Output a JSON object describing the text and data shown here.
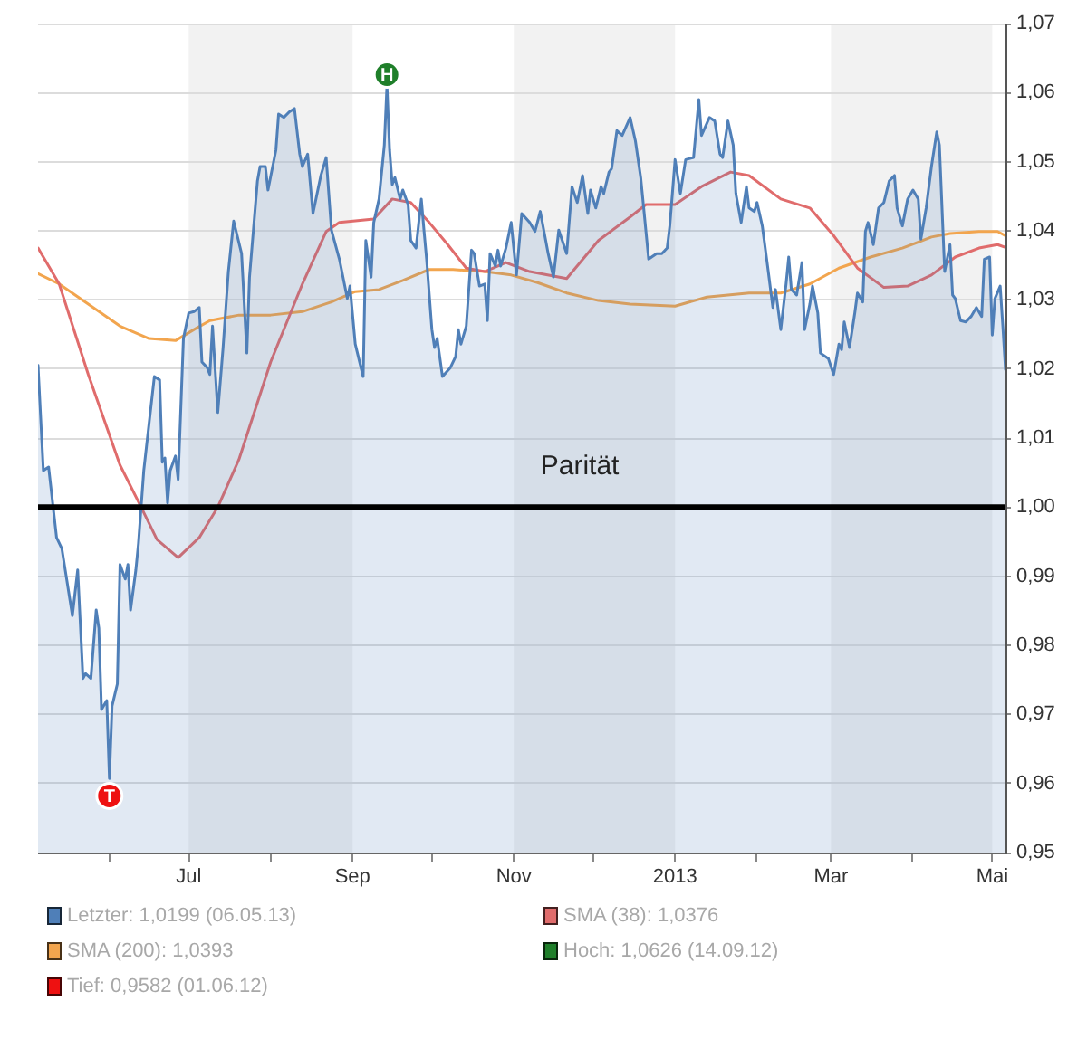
{
  "chart_data": {
    "type": "line",
    "xlim": [
      "2012-05-05",
      "2013-05-06"
    ],
    "xticks": [
      {
        "value": "2012-06-01",
        "label": null
      },
      {
        "value": "2012-07-01",
        "label": "Jul"
      },
      {
        "value": "2012-08-01",
        "label": null
      },
      {
        "value": "2012-09-01",
        "label": "Sep"
      },
      {
        "value": "2012-10-01",
        "label": null
      },
      {
        "value": "2012-11-01",
        "label": "Nov"
      },
      {
        "value": "2012-12-01",
        "label": null
      },
      {
        "value": "2013-01-01",
        "label": "2013"
      },
      {
        "value": "2013-02-01",
        "label": null
      },
      {
        "value": "2013-03-01",
        "label": "Mar"
      },
      {
        "value": "2013-04-01",
        "label": null
      },
      {
        "value": "2013-05-01",
        "label": "Mai"
      }
    ],
    "ylim": [
      0.95,
      1.07
    ],
    "yticks": [
      {
        "value": 0.95,
        "label": "0,95"
      },
      {
        "value": 0.96,
        "label": "0,96"
      },
      {
        "value": 0.97,
        "label": "0,97"
      },
      {
        "value": 0.98,
        "label": "0,98"
      },
      {
        "value": 0.99,
        "label": "0,99"
      },
      {
        "value": 1.0,
        "label": "1,00"
      },
      {
        "value": 1.01,
        "label": "1,01"
      },
      {
        "value": 1.02,
        "label": "1,02"
      },
      {
        "value": 1.03,
        "label": "1,03"
      },
      {
        "value": 1.04,
        "label": "1,04"
      },
      {
        "value": 1.05,
        "label": "1,05"
      },
      {
        "value": 1.06,
        "label": "1,06"
      },
      {
        "value": 1.07,
        "label": "1,07"
      }
    ],
    "grid": "y",
    "legend": "bottom",
    "bands": [
      {
        "axis": "x",
        "from": "2012-07-01",
        "to": "2012-09-01",
        "color": "#f2f2f2"
      },
      {
        "axis": "x",
        "from": "2012-11-01",
        "to": "2013-01-01",
        "color": "#f2f2f2"
      },
      {
        "axis": "x",
        "from": "2013-03-01",
        "to": "2013-05-01",
        "color": "#f2f2f2"
      }
    ],
    "ref_lines": [
      {
        "axis": "y",
        "value": 1.0,
        "label": "Parität",
        "color": "#000000"
      }
    ],
    "series": [
      {
        "name": "Letzter: 1,0199 (06.05.13)",
        "type": "area",
        "color": "#4f7fb8",
        "x": [
          "2012-05-05",
          "2012-05-07",
          "2012-05-09",
          "2012-05-12",
          "2012-05-14",
          "2012-05-18",
          "2012-05-20",
          "2012-05-22",
          "2012-05-23",
          "2012-05-25",
          "2012-05-27",
          "2012-05-28",
          "2012-05-29",
          "2012-05-31",
          "2012-06-01",
          "2012-06-02",
          "2012-06-04",
          "2012-06-05",
          "2012-06-07",
          "2012-06-08",
          "2012-06-09",
          "2012-06-11",
          "2012-06-12",
          "2012-06-14",
          "2012-06-15",
          "2012-06-18",
          "2012-06-20",
          "2012-06-21",
          "2012-06-22",
          "2012-06-23",
          "2012-06-24",
          "2012-06-26",
          "2012-06-27",
          "2012-06-29",
          "2012-07-01",
          "2012-07-03",
          "2012-07-05",
          "2012-07-06",
          "2012-07-08",
          "2012-07-09",
          "2012-07-10",
          "2012-07-12",
          "2012-07-14",
          "2012-07-16",
          "2012-07-18",
          "2012-07-21",
          "2012-07-23",
          "2012-07-24",
          "2012-07-27",
          "2012-07-28",
          "2012-07-30",
          "2012-07-31",
          "2012-08-03",
          "2012-08-04",
          "2012-08-06",
          "2012-08-08",
          "2012-08-10",
          "2012-08-12",
          "2012-08-13",
          "2012-08-15",
          "2012-08-17",
          "2012-08-20",
          "2012-08-22",
          "2012-08-24",
          "2012-08-27",
          "2012-08-30",
          "2012-08-31",
          "2012-09-02",
          "2012-09-05",
          "2012-09-06",
          "2012-09-08",
          "2012-09-09",
          "2012-09-11",
          "2012-09-13",
          "2012-09-14",
          "2012-09-15",
          "2012-09-16",
          "2012-09-17",
          "2012-09-19",
          "2012-09-20",
          "2012-09-22",
          "2012-09-23",
          "2012-09-25",
          "2012-09-27",
          "2012-09-28",
          "2012-09-29",
          "2012-10-01",
          "2012-10-02",
          "2012-10-03",
          "2012-10-05",
          "2012-10-08",
          "2012-10-10",
          "2012-10-11",
          "2012-10-12",
          "2012-10-14",
          "2012-10-16",
          "2012-10-17",
          "2012-10-19",
          "2012-10-21",
          "2012-10-22",
          "2012-10-23",
          "2012-10-25",
          "2012-10-26",
          "2012-10-27",
          "2012-10-29",
          "2012-10-31",
          "2012-11-02",
          "2012-11-04",
          "2012-11-07",
          "2012-11-09",
          "2012-11-11",
          "2012-11-14",
          "2012-11-16",
          "2012-11-18",
          "2012-11-21",
          "2012-11-23",
          "2012-11-25",
          "2012-11-27",
          "2012-11-29",
          "2012-11-30",
          "2012-12-02",
          "2012-12-04",
          "2012-12-05",
          "2012-12-07",
          "2012-12-08",
          "2012-12-10",
          "2012-12-12",
          "2012-12-15",
          "2012-12-17",
          "2012-12-19",
          "2012-12-20",
          "2012-12-22",
          "2012-12-25",
          "2012-12-27",
          "2012-12-29",
          "2012-12-30",
          "2013-01-01",
          "2013-01-03",
          "2013-01-05",
          "2013-01-08",
          "2013-01-10",
          "2013-01-11",
          "2013-01-14",
          "2013-01-16",
          "2013-01-18",
          "2013-01-19",
          "2013-01-21",
          "2013-01-23",
          "2013-01-24",
          "2013-01-26",
          "2013-01-28",
          "2013-01-29",
          "2013-01-31",
          "2013-02-01",
          "2013-02-03",
          "2013-02-05",
          "2013-02-07",
          "2013-02-08",
          "2013-02-10",
          "2013-02-12",
          "2013-02-13",
          "2013-02-14",
          "2013-02-16",
          "2013-02-18",
          "2013-02-19",
          "2013-02-21",
          "2013-02-22",
          "2013-02-24",
          "2013-02-25",
          "2013-02-28",
          "2013-03-02",
          "2013-03-04",
          "2013-03-05",
          "2013-03-06",
          "2013-03-08",
          "2013-03-10",
          "2013-03-11",
          "2013-03-13",
          "2013-03-14",
          "2013-03-15",
          "2013-03-17",
          "2013-03-19",
          "2013-03-21",
          "2013-03-23",
          "2013-03-25",
          "2013-03-26",
          "2013-03-28",
          "2013-03-30",
          "2013-04-01",
          "2013-04-03",
          "2013-04-04",
          "2013-04-06",
          "2013-04-08",
          "2013-04-10",
          "2013-04-11",
          "2013-04-13",
          "2013-04-15",
          "2013-04-16",
          "2013-04-17",
          "2013-04-19",
          "2013-04-21",
          "2013-04-23",
          "2013-04-25",
          "2013-04-27",
          "2013-04-28",
          "2013-04-30",
          "2013-05-01",
          "2013-05-02",
          "2013-05-04",
          "2013-05-05",
          "2013-05-06"
        ],
        "values": [
          1.0205,
          1.0053,
          1.0058,
          0.9956,
          0.994,
          0.9843,
          0.9909,
          0.9752,
          0.9759,
          0.9752,
          0.9851,
          0.9825,
          0.9707,
          0.972,
          0.9607,
          0.9712,
          0.9744,
          0.9917,
          0.9896,
          0.9917,
          0.9851,
          0.9909,
          0.9948,
          1.0053,
          1.0087,
          1.0189,
          1.0184,
          1.0065,
          1.0071,
          1.0006,
          1.0053,
          1.0074,
          1.004,
          1.0244,
          1.0281,
          1.0283,
          1.0289,
          1.021,
          1.0202,
          1.0192,
          1.0262,
          1.0137,
          1.0231,
          1.0341,
          1.0414,
          1.0367,
          1.0223,
          1.0333,
          1.0472,
          1.0493,
          1.0493,
          1.0459,
          1.0517,
          1.0569,
          1.0564,
          1.0572,
          1.0577,
          1.0511,
          1.0493,
          1.0511,
          1.0425,
          1.048,
          1.0506,
          1.0401,
          1.0359,
          1.0302,
          1.032,
          1.0236,
          1.0189,
          1.0386,
          1.0333,
          1.0412,
          1.0446,
          1.0524,
          1.0611,
          1.0517,
          1.0467,
          1.0477,
          1.0446,
          1.0459,
          1.0438,
          1.0386,
          1.0375,
          1.0446,
          1.0401,
          1.0359,
          1.0257,
          1.0231,
          1.0244,
          1.0189,
          1.0202,
          1.0218,
          1.0257,
          1.0236,
          1.0262,
          1.0372,
          1.0367,
          1.032,
          1.0323,
          1.027,
          1.0367,
          1.0349,
          1.0372,
          1.0349,
          1.0375,
          1.0412,
          1.0336,
          1.0425,
          1.0412,
          1.0399,
          1.0428,
          1.0367,
          1.0333,
          1.0401,
          1.0367,
          1.0464,
          1.0441,
          1.048,
          1.0425,
          1.0459,
          1.0433,
          1.0464,
          1.0454,
          1.0485,
          1.049,
          1.0545,
          1.0538,
          1.0564,
          1.053,
          1.0477,
          1.0438,
          1.0359,
          1.0367,
          1.0367,
          1.0375,
          1.0407,
          1.0503,
          1.0454,
          1.0503,
          1.0506,
          1.059,
          1.0538,
          1.0564,
          1.0559,
          1.0511,
          1.0506,
          1.0559,
          1.0524,
          1.0454,
          1.0412,
          1.0464,
          1.0433,
          1.0428,
          1.0441,
          1.0407,
          1.0349,
          1.0289,
          1.0315,
          1.0257,
          1.0323,
          1.0362,
          1.0315,
          1.0307,
          1.0354,
          1.0257,
          1.0294,
          1.032,
          1.0281,
          1.0223,
          1.0215,
          1.0192,
          1.0236,
          1.0228,
          1.0268,
          1.0231,
          1.0281,
          1.031,
          1.0297,
          1.0399,
          1.0412,
          1.038,
          1.0433,
          1.0441,
          1.0472,
          1.048,
          1.0433,
          1.0407,
          1.0446,
          1.0459,
          1.0446,
          1.0388,
          1.0433,
          1.0493,
          1.0543,
          1.0524,
          1.0341,
          1.038,
          1.0307,
          1.0302,
          1.027,
          1.0268,
          1.0276,
          1.0289,
          1.0276,
          1.0359,
          1.0362,
          1.0249,
          1.0302,
          1.032,
          1.0262,
          1.0199
        ]
      },
      {
        "name": "SMA (38): 1,0376",
        "type": "line",
        "color": "#e06c6c",
        "x": [
          "2012-05-05",
          "2012-05-13",
          "2012-05-24",
          "2012-06-05",
          "2012-06-13",
          "2012-06-19",
          "2012-06-27",
          "2012-07-05",
          "2012-07-12",
          "2012-07-20",
          "2012-08-01",
          "2012-08-13",
          "2012-08-22",
          "2012-08-27",
          "2012-09-09",
          "2012-09-16",
          "2012-09-23",
          "2012-09-30",
          "2012-10-07",
          "2012-10-14",
          "2012-10-21",
          "2012-10-29",
          "2012-11-07",
          "2012-11-21",
          "2012-12-03",
          "2012-12-15",
          "2012-12-21",
          "2013-01-01",
          "2013-01-11",
          "2013-01-22",
          "2013-01-29",
          "2013-02-10",
          "2013-02-21",
          "2013-03-02",
          "2013-03-11",
          "2013-03-21",
          "2013-03-30",
          "2013-04-08",
          "2013-04-17",
          "2013-04-26",
          "2013-05-03",
          "2013-05-06"
        ],
        "values": [
          1.0375,
          1.0323,
          1.0192,
          1.0061,
          1.0,
          0.9953,
          0.9927,
          0.9956,
          1.0,
          1.0069,
          1.021,
          1.0323,
          1.0399,
          1.0412,
          1.0417,
          1.0446,
          1.0441,
          1.0412,
          1.038,
          1.0346,
          1.0341,
          1.0354,
          1.0341,
          1.0331,
          1.0386,
          1.042,
          1.0438,
          1.0438,
          1.0464,
          1.0485,
          1.048,
          1.0446,
          1.0433,
          1.0393,
          1.0346,
          1.0318,
          1.032,
          1.0336,
          1.0362,
          1.0375,
          1.038,
          1.0376
        ]
      },
      {
        "name": "SMA (200): 1,0393",
        "type": "line",
        "color": "#f2a54e",
        "x": [
          "2012-05-05",
          "2012-05-13",
          "2012-05-24",
          "2012-06-05",
          "2012-06-16",
          "2012-06-26",
          "2012-07-03",
          "2012-07-09",
          "2012-07-20",
          "2012-08-01",
          "2012-08-13",
          "2012-08-24",
          "2012-09-02",
          "2012-09-11",
          "2012-09-20",
          "2012-09-30",
          "2012-10-09",
          "2012-10-21",
          "2012-10-31",
          "2012-11-10",
          "2012-11-21",
          "2012-12-03",
          "2012-12-15",
          "2013-01-01",
          "2013-01-13",
          "2013-01-29",
          "2013-02-10",
          "2013-02-21",
          "2013-03-04",
          "2013-03-16",
          "2013-03-28",
          "2013-04-08",
          "2013-04-15",
          "2013-04-26",
          "2013-05-03",
          "2013-05-06"
        ],
        "values": [
          1.0338,
          1.0323,
          1.0294,
          1.0262,
          1.0244,
          1.0241,
          1.0257,
          1.027,
          1.0278,
          1.0278,
          1.0283,
          1.0297,
          1.0312,
          1.0315,
          1.0328,
          1.0344,
          1.0344,
          1.0341,
          1.0336,
          1.0325,
          1.031,
          1.0299,
          1.0294,
          1.0291,
          1.0304,
          1.031,
          1.031,
          1.0323,
          1.0346,
          1.0362,
          1.0375,
          1.0391,
          1.0396,
          1.0399,
          1.0399,
          1.0393
        ]
      },
      {
        "name": "Hoch: 1,0626 (14.09.12)",
        "type": "scatter",
        "color": "#1f7f2a",
        "marker": "circle",
        "x": [
          "2012-09-14"
        ],
        "values": [
          1.0626
        ],
        "value_labels": [
          "H"
        ]
      },
      {
        "name": "Tief: 0,9582 (01.06.12)",
        "type": "scatter",
        "color": "#ee1111",
        "marker": "circle",
        "x": [
          "2012-06-01"
        ],
        "values": [
          0.9582
        ],
        "value_labels": [
          "T"
        ]
      }
    ]
  }
}
